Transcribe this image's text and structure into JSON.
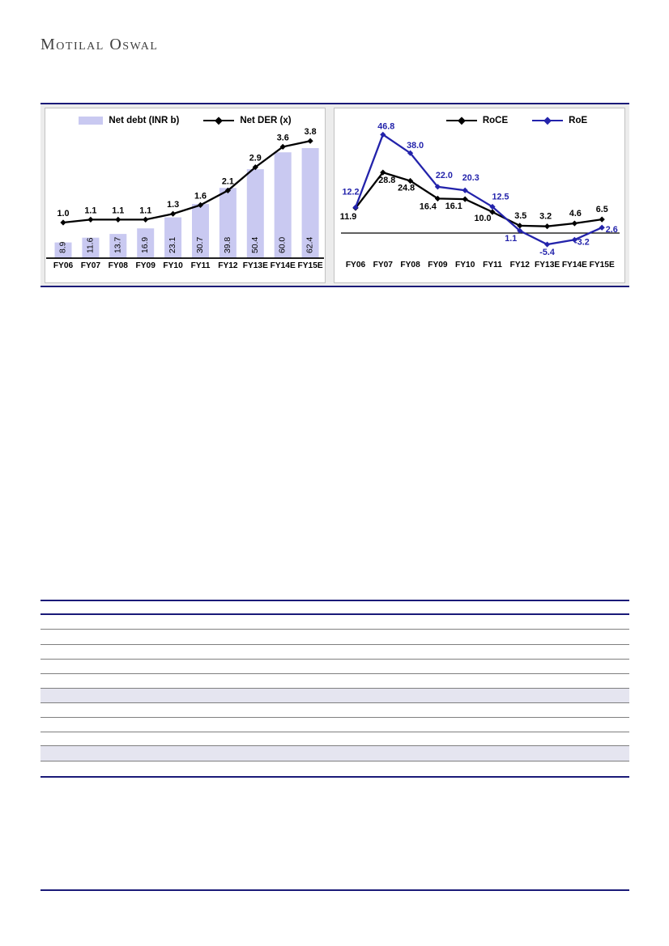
{
  "logo": {
    "text": "Motilal Oswal"
  },
  "colors": {
    "navy_rule": "#1a1a78",
    "bar_fill": "#c9c9f1",
    "roce_black": "#000000",
    "roe_blue": "#2323ab",
    "grid_gray": "#7f7f7f",
    "row_shade": "#e5e5f0"
  },
  "chart_data": [
    {
      "type": "bar",
      "title": "",
      "categories": [
        "FY06",
        "FY07",
        "FY08",
        "FY09",
        "FY10",
        "FY11",
        "FY12",
        "FY13E",
        "FY14E",
        "FY15E"
      ],
      "series": [
        {
          "name": "Net debt (INR b)",
          "type": "bar",
          "color": "#c9c9f1",
          "values": [
            8.9,
            11.6,
            13.7,
            16.9,
            23.1,
            30.7,
            39.8,
            50.4,
            60.0,
            62.4
          ]
        },
        {
          "name": "Net DER (x)",
          "type": "line",
          "color": "#000000",
          "values": [
            1.0,
            1.1,
            1.1,
            1.1,
            1.3,
            1.6,
            2.1,
            2.9,
            3.6,
            3.8
          ]
        }
      ],
      "xlabel": "",
      "ylabel": "",
      "bar_ylim": [
        0,
        85
      ],
      "line_ylim": [
        0,
        4.9
      ],
      "grid": false,
      "legend_position": "top",
      "value_labels": "bar labels rotated 90deg inside bars; line labels above points"
    },
    {
      "type": "line",
      "title": "",
      "categories": [
        "FY06",
        "FY07",
        "FY08",
        "FY09",
        "FY10",
        "FY11",
        "FY12",
        "FY13E",
        "FY14E",
        "FY15E"
      ],
      "series": [
        {
          "name": "RoCE",
          "color": "#000000",
          "values": [
            11.9,
            28.8,
            24.8,
            16.4,
            16.1,
            10.0,
            3.5,
            3.2,
            4.6,
            6.5
          ]
        },
        {
          "name": "RoE",
          "color": "#2323ab",
          "values": [
            12.2,
            46.8,
            38.0,
            22.0,
            20.3,
            12.5,
            1.1,
            -5.4,
            -3.2,
            2.6
          ]
        }
      ],
      "xlabel": "",
      "ylabel": "",
      "ylim": [
        -23.5,
        59.2
      ],
      "zero_line": true,
      "grid": false,
      "legend_position": "top",
      "value_labels": "each point labeled with its value"
    }
  ],
  "table_skeleton": {
    "header_band": true,
    "row_shading": [
      false,
      false,
      false,
      false,
      false,
      true,
      false,
      false,
      false,
      true,
      false
    ]
  }
}
